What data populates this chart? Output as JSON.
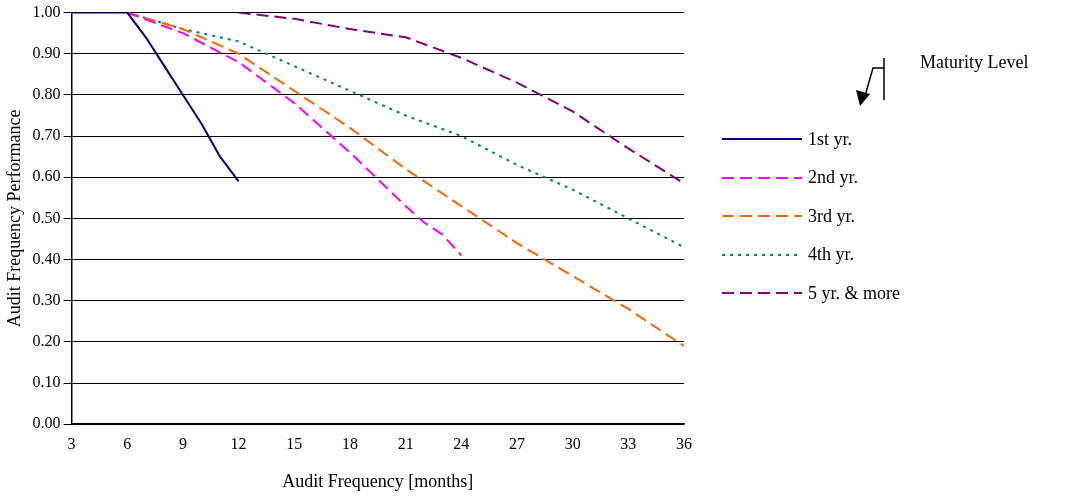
{
  "chart_data": {
    "type": "line",
    "xlabel": "Audit Frequency [months]",
    "ylabel": "Audit Frequency Performance",
    "legend_title": "Maturity Level",
    "legend": "right",
    "grid": "y",
    "marker": "none",
    "xlim": [
      3,
      36
    ],
    "xticks": [
      3,
      6,
      9,
      12,
      15,
      18,
      21,
      24,
      27,
      30,
      33,
      36
    ],
    "ylim": [
      0,
      1
    ],
    "yticks": [
      {
        "value": 0,
        "label": "0.00"
      },
      {
        "value": 0.1,
        "label": "0.10"
      },
      {
        "value": 0.2,
        "label": "0.20"
      },
      {
        "value": 0.3,
        "label": "0.30"
      },
      {
        "value": 0.4,
        "label": "0.40"
      },
      {
        "value": 0.5,
        "label": "0.50"
      },
      {
        "value": 0.6,
        "label": "0.60"
      },
      {
        "value": 0.7,
        "label": "0.70"
      },
      {
        "value": 0.8,
        "label": "0.80"
      },
      {
        "value": 0.9,
        "label": "0.90"
      },
      {
        "value": 1,
        "label": "1.00"
      }
    ],
    "series": [
      {
        "name": "1st yr.",
        "color": "#000080",
        "line_style": "solid",
        "x": [
          3,
          6,
          7,
          8,
          9,
          10,
          11,
          12
        ],
        "values": [
          1,
          1,
          0.94,
          0.87,
          0.8,
          0.73,
          0.65,
          0.59
        ]
      },
      {
        "name": "2nd yr.",
        "color": "#ff00ff",
        "line_style": "dashed",
        "x": [
          6,
          9,
          12,
          15,
          18,
          21,
          22,
          23,
          24
        ],
        "values": [
          1,
          0.95,
          0.88,
          0.78,
          0.66,
          0.53,
          0.49,
          0.46,
          0.41
        ]
      },
      {
        "name": "3rd yr.",
        "color": "#ff6600",
        "line_style": "dashed",
        "x": [
          6,
          9,
          12,
          15,
          18,
          21,
          24,
          27,
          30,
          33,
          36
        ],
        "values": [
          1,
          0.96,
          0.9,
          0.81,
          0.72,
          0.62,
          0.53,
          0.44,
          0.36,
          0.28,
          0.19
        ]
      },
      {
        "name": "4th yr.",
        "color": "#008080",
        "line_style": "dotted",
        "x": [
          6,
          9,
          12,
          15,
          18,
          21,
          24,
          27,
          30,
          33,
          36
        ],
        "values": [
          1,
          0.96,
          0.93,
          0.87,
          0.81,
          0.75,
          0.7,
          0.63,
          0.57,
          0.5,
          0.43
        ]
      },
      {
        "name": "5 yr. & more",
        "color": "#800080",
        "line_style": "dashed",
        "x": [
          12,
          15,
          18,
          21,
          24,
          27,
          30,
          33,
          36
        ],
        "values": [
          1,
          0.985,
          0.96,
          0.94,
          0.89,
          0.83,
          0.76,
          0.67,
          0.585
        ]
      }
    ]
  }
}
